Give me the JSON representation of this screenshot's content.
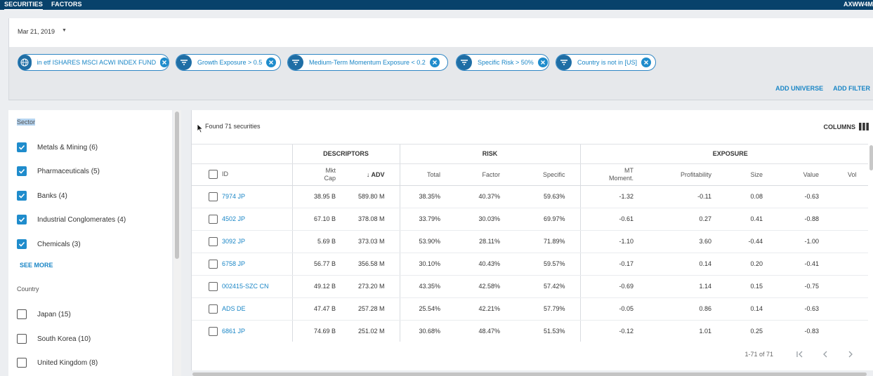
{
  "topbar": {
    "nav": [
      "SECURITIES",
      "FACTORS"
    ],
    "active": "SECURITIES",
    "user": "AXWW4M"
  },
  "date": {
    "value": "Mar 21, 2019"
  },
  "filters": {
    "chips": [
      {
        "label": "in etf ISHARES MSCI ACWI INDEX FUND",
        "icon": "globe-icon"
      },
      {
        "label": "Growth Exposure > 0.5",
        "icon": "filter-icon"
      },
      {
        "label": "Medium-Term Momentum Exposure < 0.2",
        "icon": "filter-icon"
      },
      {
        "label": "Specific Risk > 50%",
        "icon": "filter-icon"
      },
      {
        "label": "Country is not in [US]",
        "icon": "filter-icon"
      }
    ],
    "add_universe": "ADD UNIVERSE",
    "add_filter": "ADD FILTER"
  },
  "sidebar": {
    "sector_title": "Sector",
    "sectors": [
      {
        "label": "Metals & Mining (6)",
        "checked": true
      },
      {
        "label": "Pharmaceuticals (5)",
        "checked": true
      },
      {
        "label": "Banks (4)",
        "checked": true
      },
      {
        "label": "Industrial Conglomerates (4)",
        "checked": true
      },
      {
        "label": "Chemicals (3)",
        "checked": true
      }
    ],
    "see_more": "SEE MORE",
    "country_title": "Country",
    "countries": [
      {
        "label": "Japan (15)",
        "checked": false
      },
      {
        "label": "South Korea (10)",
        "checked": false
      },
      {
        "label": "United Kingdom (8)",
        "checked": false
      }
    ]
  },
  "main": {
    "found": "Found 71 securities",
    "columns_label": "COLUMNS",
    "groups": {
      "descriptors": "DESCRIPTORS",
      "risk": "RISK",
      "exposure": "EXPOSURE"
    },
    "headers": {
      "id": "ID",
      "mkt_cap_line1": "Mkt",
      "mkt_cap_line2": "Cap",
      "adv": "ADV",
      "total": "Total",
      "factor": "Factor",
      "specific": "Specific",
      "mt_line1": "MT",
      "mt_line2": "Moment.",
      "profitability": "Profitability",
      "size": "Size",
      "value": "Value",
      "vol": "Vol"
    },
    "rows": [
      [
        "7974 JP",
        "38.95 B",
        "589.80 M",
        "38.35%",
        "40.37%",
        "59.63%",
        "-1.32",
        "-0.11",
        "0.08",
        "-0.63"
      ],
      [
        "4502 JP",
        "67.10 B",
        "378.08 M",
        "33.79%",
        "30.03%",
        "69.97%",
        "-0.61",
        "0.27",
        "0.41",
        "-0.88"
      ],
      [
        "3092 JP",
        "5.69 B",
        "373.03 M",
        "53.90%",
        "28.11%",
        "71.89%",
        "-1.10",
        "3.60",
        "-0.44",
        "-1.00"
      ],
      [
        "6758 JP",
        "56.77 B",
        "356.58 M",
        "30.10%",
        "40.43%",
        "59.57%",
        "-0.17",
        "0.14",
        "0.20",
        "-0.41"
      ],
      [
        "002415-SZC CN",
        "49.12 B",
        "273.20 M",
        "43.35%",
        "42.58%",
        "57.42%",
        "-0.69",
        "1.14",
        "0.15",
        "-0.75"
      ],
      [
        "ADS DE",
        "47.47 B",
        "257.28 M",
        "25.54%",
        "42.21%",
        "57.79%",
        "-0.05",
        "0.86",
        "0.14",
        "-0.63"
      ],
      [
        "6861 JP",
        "74.69 B",
        "251.02 M",
        "30.68%",
        "48.47%",
        "51.53%",
        "-0.12",
        "1.01",
        "0.25",
        "-0.83"
      ]
    ],
    "pager": {
      "range": "1-71 of 71"
    }
  },
  "colors": {
    "topbar": "#08426b",
    "accent": "#1a86c6",
    "chip_icon": "#1f6ea5",
    "checked": "#1f8ccc"
  }
}
